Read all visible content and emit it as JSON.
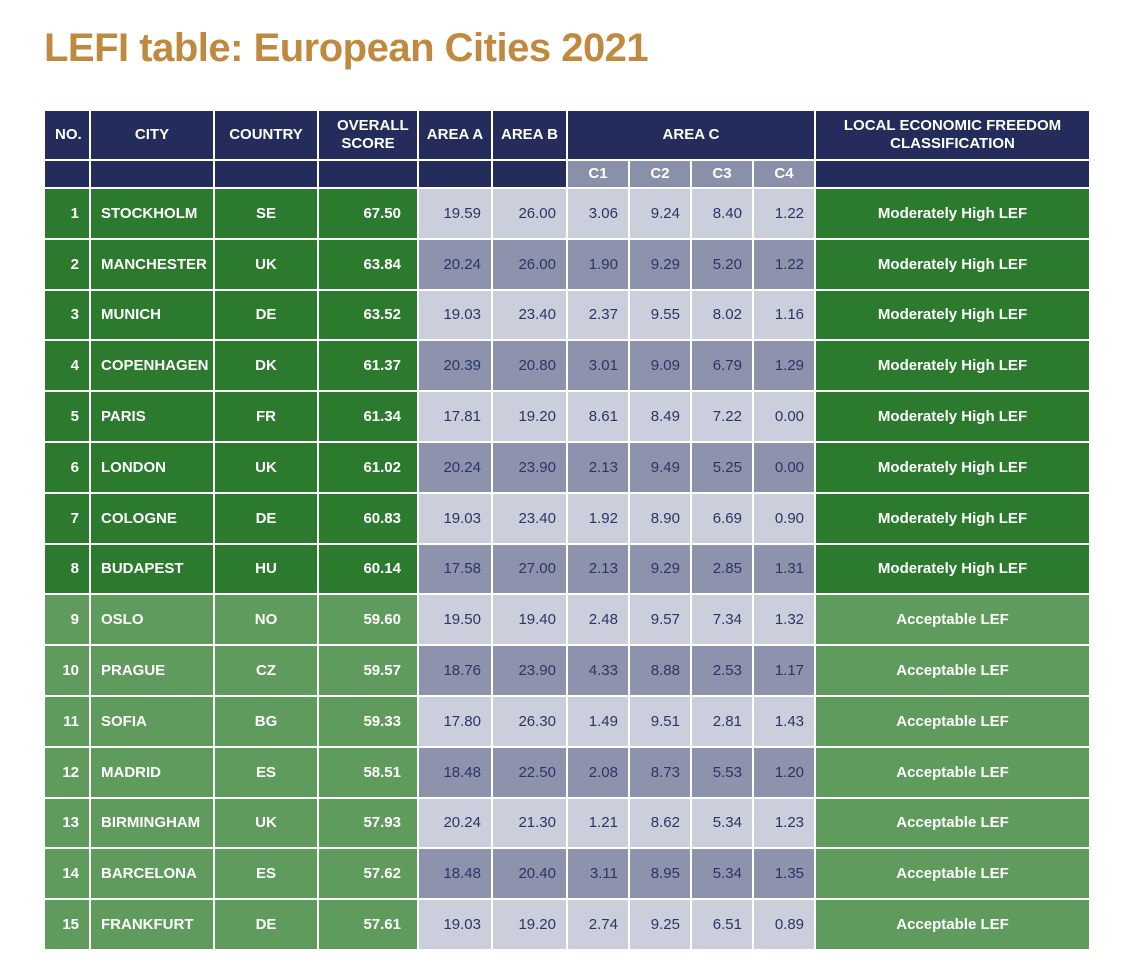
{
  "title": "LEFI table: European Cities 2021",
  "table": {
    "header": [
      "NO.",
      "CITY",
      "COUNTRY",
      "OVERALL SCORE",
      "AREA A",
      "AREA B",
      "AREA C",
      "LOCAL ECONOMIC FREEDOM CLASSIFICATION"
    ],
    "subheader": [
      "C1",
      "C2",
      "C3",
      "C4"
    ],
    "rows": [
      [
        "1",
        "STOCKHOLM",
        "SE",
        "67.50",
        "19.59",
        "26.00",
        "3.06",
        "9.24",
        "8.40",
        "1.22",
        "Moderately High LEF"
      ],
      [
        "2",
        "MANCHESTER",
        "UK",
        "63.84",
        "20.24",
        "26.00",
        "1.90",
        "9.29",
        "5.20",
        "1.22",
        "Moderately High LEF"
      ],
      [
        "3",
        "MUNICH",
        "DE",
        "63.52",
        "19.03",
        "23.40",
        "2.37",
        "9.55",
        "8.02",
        "1.16",
        "Moderately High LEF"
      ],
      [
        "4",
        "COPENHAGEN",
        "DK",
        "61.37",
        "20.39",
        "20.80",
        "3.01",
        "9.09",
        "6.79",
        "1.29",
        "Moderately High LEF"
      ],
      [
        "5",
        "PARIS",
        "FR",
        "61.34",
        "17.81",
        "19.20",
        "8.61",
        "8.49",
        "7.22",
        "0.00",
        "Moderately High LEF"
      ],
      [
        "6",
        "LONDON",
        "UK",
        "61.02",
        "20.24",
        "23.90",
        "2.13",
        "9.49",
        "5.25",
        "0.00",
        "Moderately High LEF"
      ],
      [
        "7",
        "COLOGNE",
        "DE",
        "60.83",
        "19.03",
        "23.40",
        "1.92",
        "8.90",
        "6.69",
        "0.90",
        "Moderately High LEF"
      ],
      [
        "8",
        "BUDAPEST",
        "HU",
        "60.14",
        "17.58",
        "27.00",
        "2.13",
        "9.29",
        "2.85",
        "1.31",
        "Moderately High LEF"
      ],
      [
        "9",
        "OSLO",
        "NO",
        "59.60",
        "19.50",
        "19.40",
        "2.48",
        "9.57",
        "7.34",
        "1.32",
        "Acceptable LEF"
      ],
      [
        "10",
        "PRAGUE",
        "CZ",
        "59.57",
        "18.76",
        "23.90",
        "4.33",
        "8.88",
        "2.53",
        "1.17",
        "Acceptable LEF"
      ],
      [
        "11",
        "SOFIA",
        "BG",
        "59.33",
        "17.80",
        "26.30",
        "1.49",
        "9.51",
        "2.81",
        "1.43",
        "Acceptable LEF"
      ],
      [
        "12",
        "MADRID",
        "ES",
        "58.51",
        "18.48",
        "22.50",
        "2.08",
        "8.73",
        "5.53",
        "1.20",
        "Acceptable LEF"
      ],
      [
        "13",
        "BIRMINGHAM",
        "UK",
        "57.93",
        "20.24",
        "21.30",
        "1.21",
        "8.62",
        "5.34",
        "1.23",
        "Acceptable LEF"
      ],
      [
        "14",
        "BARCELONA",
        "ES",
        "57.62",
        "18.48",
        "20.40",
        "3.11",
        "8.95",
        "5.34",
        "1.35",
        "Acceptable LEF"
      ],
      [
        "15",
        "FRANKFURT",
        "DE",
        "57.61",
        "19.03",
        "19.20",
        "2.74",
        "9.25",
        "6.51",
        "0.89",
        "Acceptable LEF"
      ]
    ]
  }
}
